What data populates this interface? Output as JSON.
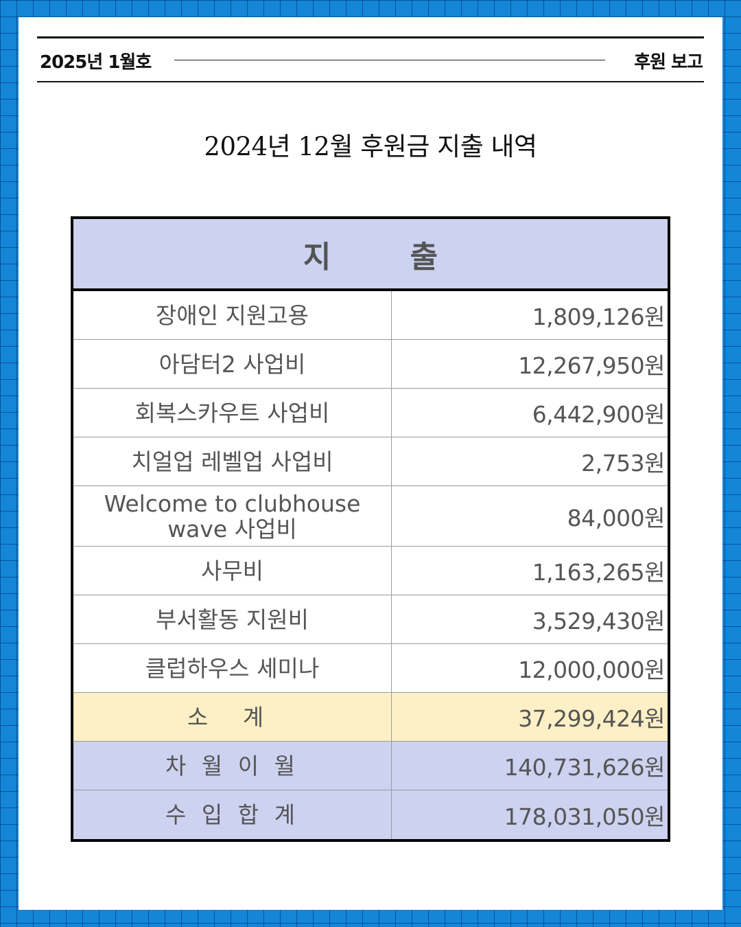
{
  "header": {
    "issue": "2025년 1월호",
    "section": "후원 보고"
  },
  "title": "2024년 12월 후원금 지출 내역",
  "table": {
    "heading": "지 출",
    "rows": [
      {
        "label": "장애인 지원고용",
        "amount": "1,809,126원"
      },
      {
        "label": "아담터2 사업비",
        "amount": "12,267,950원"
      },
      {
        "label": "회복스카우트 사업비",
        "amount": "6,442,900원"
      },
      {
        "label": "치얼업 레벨업 사업비",
        "amount": "2,753원"
      },
      {
        "label": "Welcome to clubhouse wave 사업비",
        "amount": "84,000원"
      },
      {
        "label": "사무비",
        "amount": "1,163,265원"
      },
      {
        "label": "부서활동 지원비",
        "amount": "3,529,430원"
      },
      {
        "label": "클럽하우스 세미나",
        "amount": "12,000,000원"
      }
    ],
    "subtotal": {
      "label": "소 계",
      "amount": "37,299,424원"
    },
    "carryover": {
      "label": "차 월 이 월",
      "amount": "140,731,626원"
    },
    "total": {
      "label": "수 입 합 계",
      "amount": "178,031,050원"
    }
  },
  "colors": {
    "background": "#1585d6",
    "header_fill": "#cdd2f0",
    "subtotal_fill": "#fef0c6"
  }
}
